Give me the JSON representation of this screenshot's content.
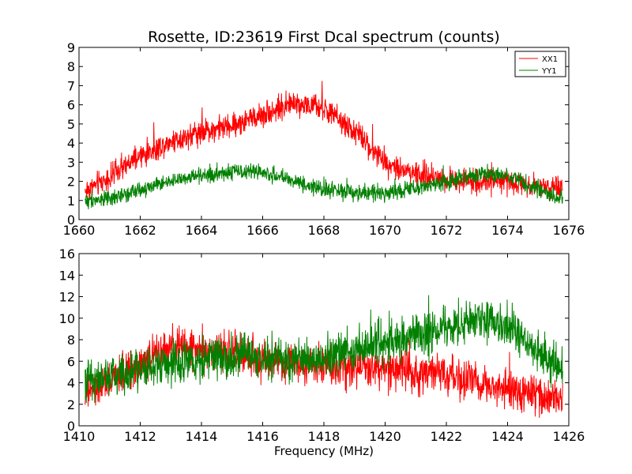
{
  "chart_data": [
    {
      "type": "line",
      "title": "Rosette, ID:23619 First Dcal spectrum (counts)",
      "xlabel": "",
      "ylabel": "",
      "xlim": [
        1660,
        1676
      ],
      "ylim": [
        0,
        9
      ],
      "xticks": [
        1660,
        1662,
        1664,
        1666,
        1668,
        1670,
        1672,
        1674,
        1676
      ],
      "yticks": [
        0,
        1,
        2,
        3,
        4,
        5,
        6,
        7,
        8,
        9
      ],
      "legend": {
        "position": "top-right"
      },
      "series": [
        {
          "name": "XX1",
          "color": "#ff0000",
          "noise": 0.45,
          "envelope": [
            [
              1660.2,
              1.5
            ],
            [
              1661,
              2.2
            ],
            [
              1662,
              3.3
            ],
            [
              1663,
              4.1
            ],
            [
              1664,
              4.6
            ],
            [
              1665,
              4.9
            ],
            [
              1666,
              5.5
            ],
            [
              1667,
              6.1
            ],
            [
              1668,
              5.8
            ],
            [
              1669,
              4.6
            ],
            [
              1670,
              3.0
            ],
            [
              1671,
              2.4
            ],
            [
              1672,
              2.1
            ],
            [
              1673,
              2.0
            ],
            [
              1674,
              2.0
            ],
            [
              1675,
              1.8
            ],
            [
              1675.8,
              1.6
            ]
          ]
        },
        {
          "name": "YY1",
          "color": "#008000",
          "noise": 0.3,
          "envelope": [
            [
              1660.2,
              1.0
            ],
            [
              1661,
              1.1
            ],
            [
              1662,
              1.6
            ],
            [
              1663,
              2.0
            ],
            [
              1664,
              2.3
            ],
            [
              1665,
              2.5
            ],
            [
              1666,
              2.5
            ],
            [
              1667,
              2.0
            ],
            [
              1668,
              1.6
            ],
            [
              1669,
              1.4
            ],
            [
              1670,
              1.4
            ],
            [
              1671,
              1.6
            ],
            [
              1672,
              1.9
            ],
            [
              1673,
              2.4
            ],
            [
              1674,
              2.3
            ],
            [
              1675,
              1.6
            ],
            [
              1675.8,
              1.1
            ]
          ]
        }
      ]
    },
    {
      "type": "line",
      "title": "",
      "xlabel": "Frequency (MHz)",
      "ylabel": "",
      "xlim": [
        1410,
        1426
      ],
      "ylim": [
        0,
        16
      ],
      "xticks": [
        1410,
        1412,
        1414,
        1416,
        1418,
        1420,
        1422,
        1424,
        1426
      ],
      "yticks": [
        0,
        2,
        4,
        6,
        8,
        10,
        12,
        14,
        16
      ],
      "series": [
        {
          "name": "XX1",
          "color": "#ff0000",
          "noise": 1.3,
          "envelope": [
            [
              1410.2,
              3.0
            ],
            [
              1411,
              4.0
            ],
            [
              1412,
              5.8
            ],
            [
              1413,
              7.3
            ],
            [
              1414,
              7.2
            ],
            [
              1415,
              6.6
            ],
            [
              1416,
              6.2
            ],
            [
              1417,
              6.0
            ],
            [
              1418,
              5.8
            ],
            [
              1419,
              5.5
            ],
            [
              1420,
              5.3
            ],
            [
              1421,
              5.0
            ],
            [
              1422,
              4.6
            ],
            [
              1423,
              3.9
            ],
            [
              1424,
              3.3
            ],
            [
              1425,
              2.8
            ],
            [
              1425.8,
              2.5
            ]
          ]
        },
        {
          "name": "YY1",
          "color": "#008000",
          "noise": 1.4,
          "envelope": [
            [
              1410.2,
              4.3
            ],
            [
              1411,
              4.6
            ],
            [
              1412,
              5.2
            ],
            [
              1413,
              5.8
            ],
            [
              1414,
              6.2
            ],
            [
              1415,
              6.4
            ],
            [
              1416,
              6.3
            ],
            [
              1417,
              6.2
            ],
            [
              1418,
              6.4
            ],
            [
              1419,
              7.0
            ],
            [
              1420,
              7.8
            ],
            [
              1421,
              8.3
            ],
            [
              1422,
              9.0
            ],
            [
              1423,
              9.8
            ],
            [
              1424,
              9.3
            ],
            [
              1425,
              7.0
            ],
            [
              1425.8,
              5.0
            ]
          ]
        }
      ]
    }
  ]
}
